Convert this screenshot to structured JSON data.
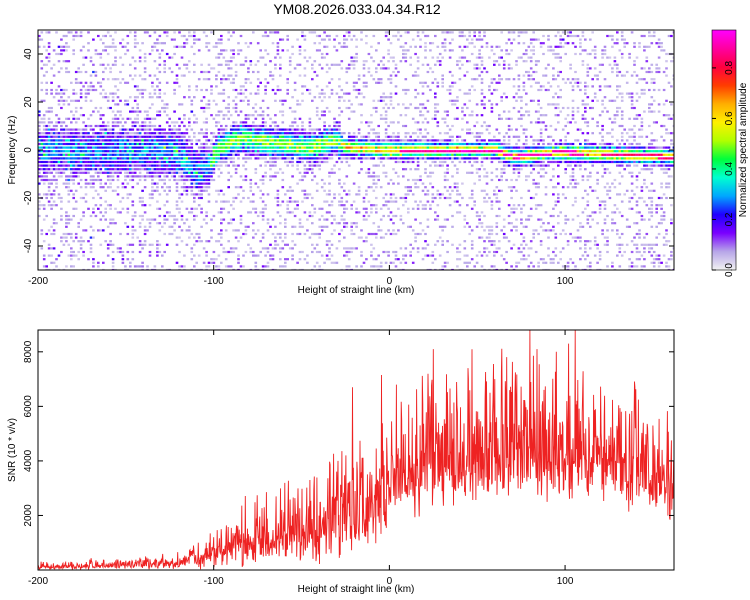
{
  "figure": {
    "title": "YM08.2026.033.04.34.R12"
  },
  "chart_data": [
    {
      "type": "heatmap",
      "xlabel": "Height of straight line (km)",
      "ylabel": "Frequency (Hz)",
      "xlim": [
        -200,
        162
      ],
      "ylim": [
        -50,
        50
      ],
      "x_ticks": [
        "-200",
        "-100",
        "0",
        "100"
      ],
      "y_ticks": [
        "40",
        "20",
        "0",
        "-20",
        "-40"
      ],
      "colorbar": {
        "label": "Normalized spectral amplitude",
        "range": [
          0,
          0.95
        ],
        "ticks": [
          "0.0",
          "0.2",
          "0.4",
          "0.6",
          "0.8"
        ],
        "colors": [
          "#f2f2f2",
          "#b7a6e8",
          "#7a00ff",
          "#1f00ff",
          "#00a7ff",
          "#00ffd0",
          "#00ff3c",
          "#b0ff00",
          "#fff000",
          "#ffae00",
          "#ff3c00",
          "#ff0040",
          "#ff00a0",
          "#ff00ff"
        ]
      },
      "ridge": [
        {
          "x": -200,
          "f": 0
        },
        {
          "x": -170,
          "f": -1
        },
        {
          "x": -140,
          "f": 0
        },
        {
          "x": -120,
          "f": -2
        },
        {
          "x": -110,
          "f": -9
        },
        {
          "x": -103,
          "f": -7
        },
        {
          "x": -98,
          "f": 1
        },
        {
          "x": -85,
          "f": 5
        },
        {
          "x": -70,
          "f": 3
        },
        {
          "x": -55,
          "f": 2
        },
        {
          "x": -45,
          "f": 1
        },
        {
          "x": -38,
          "f": 3
        },
        {
          "x": -30,
          "f": 4
        },
        {
          "x": -25,
          "f": 1
        },
        {
          "x": 0,
          "f": 0
        },
        {
          "x": 30,
          "f": 0
        },
        {
          "x": 60,
          "f": 0
        },
        {
          "x": 70,
          "f": -3
        },
        {
          "x": 95,
          "f": -1
        },
        {
          "x": 130,
          "f": -2
        },
        {
          "x": 162,
          "f": -3
        }
      ]
    },
    {
      "type": "line",
      "xlabel": "Height of straight line (km)",
      "ylabel": "SNR (10 * v/v)",
      "xlim": [
        -200,
        162
      ],
      "ylim": [
        0,
        8800
      ],
      "x_ticks": [
        "-200",
        "-100",
        "0",
        "100"
      ],
      "y_ticks": [
        "8000",
        "6000",
        "4000",
        "2000"
      ],
      "color": "#ee2222",
      "envelope": [
        {
          "x": -200,
          "base": 50,
          "amp": 150
        },
        {
          "x": -150,
          "base": 100,
          "amp": 250
        },
        {
          "x": -120,
          "base": 150,
          "amp": 350
        },
        {
          "x": -100,
          "base": 300,
          "amp": 800
        },
        {
          "x": -80,
          "base": 500,
          "amp": 1400
        },
        {
          "x": -60,
          "base": 700,
          "amp": 1800
        },
        {
          "x": -40,
          "base": 800,
          "amp": 2200
        },
        {
          "x": -30,
          "base": 900,
          "amp": 2600
        },
        {
          "x": -20,
          "base": 1000,
          "amp": 2600
        },
        {
          "x": -10,
          "base": 1400,
          "amp": 3000
        },
        {
          "x": 0,
          "base": 2200,
          "amp": 2800
        },
        {
          "x": 20,
          "base": 2800,
          "amp": 3200
        },
        {
          "x": 50,
          "base": 3200,
          "amp": 3400
        },
        {
          "x": 80,
          "base": 3300,
          "amp": 3400
        },
        {
          "x": 110,
          "base": 3200,
          "amp": 3200
        },
        {
          "x": 140,
          "base": 2900,
          "amp": 2700
        },
        {
          "x": 162,
          "base": 2600,
          "amp": 2400
        }
      ],
      "spikes": [
        {
          "x": -21,
          "y": 6700
        },
        {
          "x": 25,
          "y": 8100
        },
        {
          "x": 45,
          "y": 7000
        },
        {
          "x": 60,
          "y": 7000
        },
        {
          "x": 80,
          "y": 8800
        },
        {
          "x": 84,
          "y": 8100
        },
        {
          "x": 95,
          "y": 8000
        },
        {
          "x": 102,
          "y": 8300
        },
        {
          "x": 132,
          "y": 5800
        },
        {
          "x": 140,
          "y": 5200
        },
        {
          "x": 150,
          "y": 5300
        }
      ]
    }
  ]
}
